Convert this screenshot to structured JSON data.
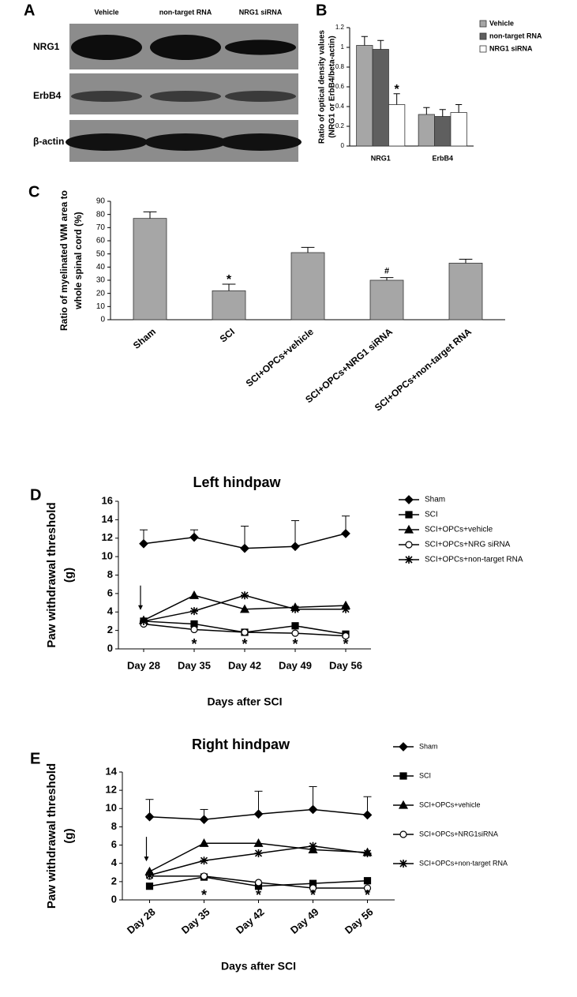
{
  "blot": {
    "panel": "A",
    "lanes": [
      "Vehicle",
      "non-target RNA",
      "NRG1 siRNA"
    ],
    "rows": [
      "NRG1",
      "ErbB4",
      "β-actin"
    ]
  },
  "chart_data": [
    {
      "type": "bar",
      "panel": "B",
      "categories": [
        "NRG1",
        "ErbB4"
      ],
      "series": [
        {
          "name": "Vehicle",
          "color": "#a6a6a6",
          "values": [
            1.02,
            0.32
          ],
          "errors": [
            0.09,
            0.07
          ]
        },
        {
          "name": "non-target RNA",
          "color": "#5f5f5f",
          "values": [
            0.98,
            0.3
          ],
          "errors": [
            0.09,
            0.07
          ]
        },
        {
          "name": "NRG1 siRNA",
          "color": "#ffffff",
          "values": [
            0.42,
            0.34
          ],
          "errors": [
            0.11,
            0.08
          ]
        }
      ],
      "ylabel": [
        "Ratio of optical density values",
        "(NRG1 or ErbB4/beta-actin)"
      ],
      "ylim": [
        0,
        1.2
      ],
      "yticks": [
        0,
        0.2,
        0.4,
        0.6,
        0.8,
        1,
        1.2
      ],
      "annotations": [
        {
          "text": "*",
          "category": "NRG1",
          "series": "NRG1 siRNA"
        }
      ]
    },
    {
      "type": "bar",
      "panel": "C",
      "categories": [
        "Sham",
        "SCI",
        "SCI+OPCs+vehicle",
        "SCI+OPCs+NRG1 siRNA",
        "SCI+OPCs+non-target RNA"
      ],
      "values": [
        77,
        22,
        51,
        30,
        43
      ],
      "errors": [
        5,
        5,
        4,
        2,
        3
      ],
      "color": "#a6a6a6",
      "ylabel": [
        "Ratio of myelinated WM area to",
        "whole spinal cord (%)"
      ],
      "ylim": [
        0,
        90
      ],
      "yticks": [
        0,
        10,
        20,
        30,
        40,
        50,
        60,
        70,
        80,
        90
      ],
      "annotations": [
        {
          "text": "*",
          "category": "SCI"
        },
        {
          "text": "#",
          "category": "SCI+OPCs+NRG1 siRNA"
        }
      ]
    },
    {
      "type": "line",
      "panel": "D",
      "title": "Left hindpaw",
      "categories": [
        "Day 28",
        "Day 35",
        "Day 42",
        "Day 49",
        "Day 56"
      ],
      "series": [
        {
          "name": "Sham",
          "marker": "diamond",
          "values": [
            11.4,
            12.1,
            10.9,
            11.1,
            12.5
          ],
          "errors": [
            1.5,
            0.8,
            2.4,
            2.8,
            1.9
          ]
        },
        {
          "name": "SCI",
          "marker": "square",
          "values": [
            3.0,
            2.7,
            1.8,
            2.5,
            1.6
          ]
        },
        {
          "name": "SCI+OPCs+vehicle",
          "marker": "triangle",
          "values": [
            3.1,
            5.8,
            4.3,
            4.5,
            4.7
          ]
        },
        {
          "name": "SCI+OPCs+NRG siRNA",
          "marker": "circle",
          "values": [
            2.7,
            2.1,
            1.8,
            1.7,
            1.4
          ]
        },
        {
          "name": "SCI+OPCs+non-target RNA",
          "marker": "star",
          "values": [
            3.0,
            4.1,
            5.8,
            4.3,
            4.3
          ]
        }
      ],
      "ylabel": [
        "Paw withdrawal threshold",
        "(g)"
      ],
      "xlabel": "Days after SCI",
      "ylim": [
        0,
        16
      ],
      "yticks": [
        0,
        2,
        4,
        6,
        8,
        10,
        12,
        14,
        16
      ],
      "annotations": [
        {
          "text": "*",
          "category": "Day 35"
        },
        {
          "text": "*",
          "category": "Day 42"
        },
        {
          "text": "*",
          "category": "Day 49"
        },
        {
          "text": "*",
          "category": "Day 56"
        }
      ]
    },
    {
      "type": "line",
      "panel": "E",
      "title": "Right hindpaw",
      "categories": [
        "Day 28",
        "Day 35",
        "Day 42",
        "Day 49",
        "Day 56"
      ],
      "series": [
        {
          "name": "Sham",
          "marker": "diamond",
          "values": [
            9.1,
            8.8,
            9.4,
            9.9,
            9.3
          ],
          "errors": [
            1.9,
            1.1,
            2.5,
            2.5,
            2.0
          ]
        },
        {
          "name": "SCI",
          "marker": "square",
          "values": [
            1.5,
            2.5,
            1.5,
            1.8,
            2.1
          ]
        },
        {
          "name": "SCI+OPCs+vehicle",
          "marker": "triangle",
          "values": [
            3.1,
            6.2,
            6.2,
            5.5,
            5.2
          ]
        },
        {
          "name": "SCI+OPCs+NRG1siRNA",
          "marker": "circle",
          "values": [
            2.6,
            2.6,
            1.9,
            1.3,
            1.3
          ]
        },
        {
          "name": "SCI+OPCs+non-target RNA",
          "marker": "star",
          "values": [
            2.7,
            4.3,
            5.1,
            5.9,
            5.1
          ]
        }
      ],
      "ylabel": [
        "Paw withdrawal threshold",
        "(g)"
      ],
      "xlabel": "Days after SCI",
      "ylim": [
        0,
        14
      ],
      "yticks": [
        0,
        2,
        4,
        6,
        8,
        10,
        12,
        14
      ],
      "annotations": [
        {
          "text": "*",
          "category": "Day 35"
        },
        {
          "text": "*",
          "category": "Day 42"
        },
        {
          "text": "*",
          "category": "Day 49"
        },
        {
          "text": "*",
          "category": "Day 56"
        }
      ]
    }
  ]
}
